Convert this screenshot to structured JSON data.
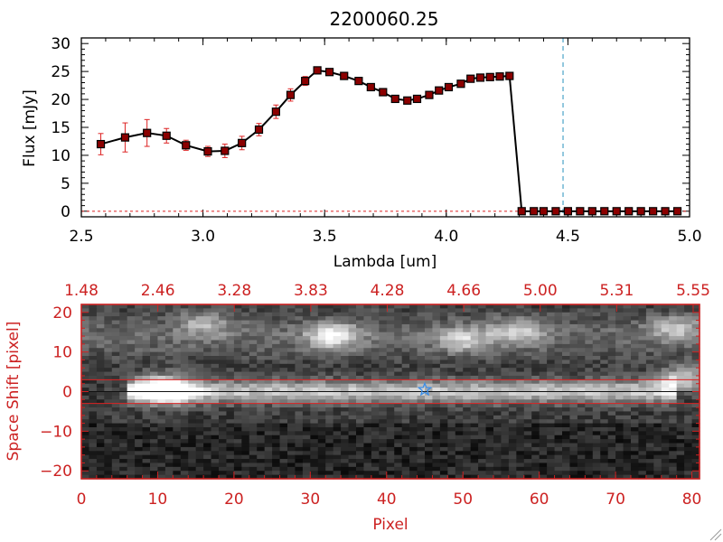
{
  "colors": {
    "background": "#ffffff",
    "axis_top": "#000000",
    "axis_bottom": "#cc2222",
    "marker": "#8b0000",
    "errorbar": "#dd2222",
    "spectrum_line": "#000000",
    "vline": "#4aa3c8",
    "star": "#3b8ee8",
    "band_lines": "#dd2222"
  },
  "chart_data": [
    {
      "type": "line",
      "title": "2200060.25",
      "xlabel": "Lambda [um]",
      "ylabel": "Flux [mJy]",
      "xlim": [
        2.5,
        5.0
      ],
      "ylim": [
        -1,
        31
      ],
      "xticks": [
        2.5,
        3.0,
        3.5,
        4.0,
        4.5,
        5.0
      ],
      "xtick_labels": [
        "2.5",
        "3.0",
        "3.5",
        "4.0",
        "4.5",
        "5.0"
      ],
      "yticks": [
        0,
        5,
        10,
        15,
        20,
        25,
        30
      ],
      "ytick_labels": [
        "0",
        "5",
        "10",
        "15",
        "20",
        "25",
        "30"
      ],
      "vline_x": 4.48,
      "series": [
        {
          "x": [
            2.58,
            2.68,
            2.77,
            2.85,
            2.93,
            3.02,
            3.09,
            3.16,
            3.23,
            3.3,
            3.36,
            3.42,
            3.47,
            3.52,
            3.58,
            3.64,
            3.69,
            3.74,
            3.79,
            3.84,
            3.88,
            3.93,
            3.97,
            4.01,
            4.06,
            4.1,
            4.14,
            4.18,
            4.22,
            4.26,
            4.31,
            4.36,
            4.4,
            4.45,
            4.5,
            4.55,
            4.6,
            4.65,
            4.7,
            4.75,
            4.8,
            4.85,
            4.9,
            4.95
          ],
          "y": [
            12.0,
            13.2,
            14.0,
            13.5,
            11.8,
            10.7,
            10.8,
            12.2,
            14.6,
            17.8,
            20.8,
            23.3,
            25.2,
            24.9,
            24.2,
            23.3,
            22.2,
            21.3,
            20.1,
            19.8,
            20.1,
            20.8,
            21.6,
            22.2,
            22.8,
            23.7,
            23.9,
            24.0,
            24.1,
            24.2,
            0,
            0,
            0,
            0,
            0,
            0,
            0,
            0,
            0,
            0,
            0,
            0,
            0,
            0
          ],
          "yerr": [
            1.9,
            2.6,
            2.4,
            1.3,
            0.9,
            0.9,
            1.2,
            1.2,
            1.1,
            1.2,
            1.1,
            0.8,
            0.6,
            0.6,
            0.5,
            0.5,
            0.5,
            0.5,
            0.5,
            0.5,
            0.5,
            0.5,
            0.5,
            0.5,
            0.5,
            0.5,
            0.5,
            0.5,
            0.5,
            0.5,
            0,
            0,
            0,
            0,
            0,
            0,
            0,
            0,
            0,
            0,
            0,
            0,
            0,
            0
          ]
        }
      ]
    },
    {
      "type": "heatmap",
      "xlabel": "Pixel",
      "ylabel": "Space Shift [pixel]",
      "xlim": [
        0,
        81
      ],
      "ylim": [
        -22,
        22
      ],
      "xticks": [
        0,
        10,
        20,
        30,
        40,
        50,
        60,
        70,
        80
      ],
      "xtick_labels": [
        "0",
        "10",
        "20",
        "30",
        "40",
        "50",
        "60",
        "70",
        "80"
      ],
      "yticks": [
        -20,
        -10,
        0,
        10,
        20
      ],
      "ytick_labels": [
        "−20",
        "−10",
        "0",
        "10",
        "20"
      ],
      "top_axis_labels": [
        "1.48",
        "2.46",
        "3.28",
        "3.83",
        "4.28",
        "4.66",
        "5.00",
        "5.31",
        "5.55"
      ],
      "band_y": [
        -3,
        3
      ],
      "star": {
        "x": 45,
        "y": 0.5
      },
      "trace_y": 0,
      "sources": [
        {
          "x": 11,
          "y": 0.5,
          "intensity": 1.0
        },
        {
          "x": 33,
          "y": 14,
          "intensity": 0.6
        },
        {
          "x": 50,
          "y": 13,
          "intensity": 0.45
        },
        {
          "x": 57,
          "y": 15,
          "intensity": 0.45
        },
        {
          "x": 79,
          "y": 3,
          "intensity": 0.6
        },
        {
          "x": 78,
          "y": 16,
          "intensity": 0.4
        },
        {
          "x": 16,
          "y": 17,
          "intensity": 0.35
        }
      ]
    }
  ]
}
